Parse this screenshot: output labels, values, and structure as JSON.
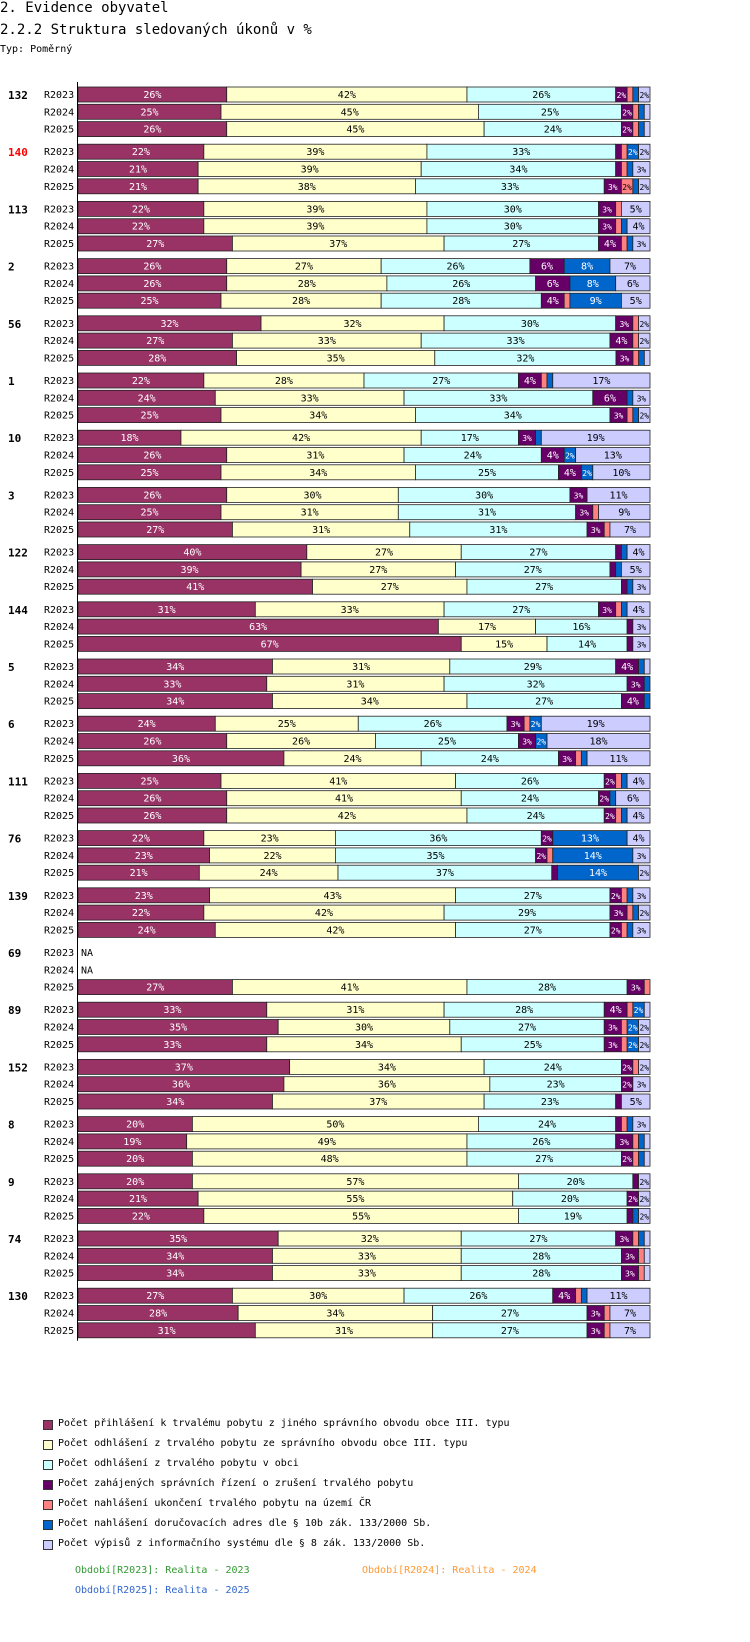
{
  "header": {
    "title": "2. Evidence obyvatel",
    "subtitle": "2.2.2 Struktura sledovaných úkonů v %",
    "type_label": "Typ: Poměrný"
  },
  "colors": [
    "#993366",
    "#FFFFCC",
    "#CCFFFF",
    "#660066",
    "#FF8080",
    "#0066CC",
    "#CCCCFF"
  ],
  "legend": [
    "Počet přihlášení k trvalému pobytu z jiného správního obvodu obce III. typu",
    "Počet odhlášení z trvalého pobytu ze správního obvodu obce III. typu",
    "Počet odhlášení z trvalého pobytu v obci",
    "Počet zahájených správních řízení o zrušení trvalého pobytu",
    "Počet nahlášení ukončení trvalého pobytu na území ČR",
    "Počet nahlášení doručovacích adres dle § 10b zák. 133/2000 Sb.",
    "Počet výpisů z informačního systému dle § 8 zák. 133/2000 Sb."
  ],
  "periods": [
    {
      "label": "Období[R2023]: Realita - 2023",
      "color": "#339933"
    },
    {
      "label": "Období[R2024]: Realita - 2024",
      "color": "#FF9933"
    },
    {
      "label": "Období[R2025]: Realita - 2025",
      "color": "#3366CC"
    }
  ],
  "chart_data": {
    "type": "bar",
    "stacked": true,
    "percent": true,
    "title": "2.2.2 Struktura sledovaných úkonů v %",
    "series_count": 7,
    "na_label": "NA",
    "groups": [
      {
        "id": "132",
        "rows": [
          {
            "period": "R2023",
            "values": [
              26,
              42,
              26,
              2,
              1,
              1,
              2
            ]
          },
          {
            "period": "R2024",
            "values": [
              25,
              45,
              25,
              2,
              1,
              1,
              1
            ]
          },
          {
            "period": "R2025",
            "values": [
              26,
              45,
              24,
              2,
              1,
              1,
              1
            ]
          }
        ]
      },
      {
        "id": "140",
        "highlight": true,
        "rows": [
          {
            "period": "R2023",
            "values": [
              22,
              39,
              33,
              1,
              1,
              2,
              2
            ]
          },
          {
            "period": "R2024",
            "values": [
              21,
              39,
              34,
              1,
              1,
              1,
              3
            ]
          },
          {
            "period": "R2025",
            "values": [
              21,
              38,
              33,
              3,
              2,
              1,
              2
            ]
          }
        ]
      },
      {
        "id": "113",
        "rows": [
          {
            "period": "R2023",
            "values": [
              22,
              39,
              30,
              3,
              1,
              0,
              5
            ]
          },
          {
            "period": "R2024",
            "values": [
              22,
              39,
              30,
              3,
              1,
              1,
              4
            ]
          },
          {
            "period": "R2025",
            "values": [
              27,
              37,
              27,
              4,
              1,
              1,
              3
            ]
          }
        ]
      },
      {
        "id": "2",
        "rows": [
          {
            "period": "R2023",
            "values": [
              26,
              27,
              26,
              6,
              0,
              8,
              7
            ]
          },
          {
            "period": "R2024",
            "values": [
              26,
              28,
              26,
              6,
              0,
              8,
              6
            ]
          },
          {
            "period": "R2025",
            "values": [
              25,
              28,
              28,
              4,
              1,
              9,
              5
            ]
          }
        ]
      },
      {
        "id": "56",
        "rows": [
          {
            "period": "R2023",
            "values": [
              32,
              32,
              30,
              3,
              1,
              0,
              2
            ]
          },
          {
            "period": "R2024",
            "values": [
              27,
              33,
              33,
              4,
              1,
              0,
              2
            ]
          },
          {
            "period": "R2025",
            "values": [
              28,
              35,
              32,
              3,
              1,
              1,
              1
            ]
          }
        ]
      },
      {
        "id": "1",
        "rows": [
          {
            "period": "R2023",
            "values": [
              22,
              28,
              27,
              4,
              1,
              1,
              17
            ]
          },
          {
            "period": "R2024",
            "values": [
              24,
              33,
              33,
              6,
              0,
              1,
              3
            ]
          },
          {
            "period": "R2025",
            "values": [
              25,
              34,
              34,
              3,
              1,
              1,
              2
            ]
          }
        ]
      },
      {
        "id": "10",
        "rows": [
          {
            "period": "R2023",
            "values": [
              18,
              42,
              17,
              3,
              0,
              1,
              19
            ]
          },
          {
            "period": "R2024",
            "values": [
              26,
              31,
              24,
              4,
              0,
              2,
              13
            ]
          },
          {
            "period": "R2025",
            "values": [
              25,
              34,
              25,
              4,
              0,
              2,
              10
            ]
          }
        ]
      },
      {
        "id": "3",
        "rows": [
          {
            "period": "R2023",
            "values": [
              26,
              30,
              30,
              3,
              0,
              0,
              11
            ]
          },
          {
            "period": "R2024",
            "values": [
              25,
              31,
              31,
              3,
              1,
              0,
              9
            ]
          },
          {
            "period": "R2025",
            "values": [
              27,
              31,
              31,
              3,
              1,
              0,
              7
            ]
          }
        ]
      },
      {
        "id": "122",
        "rows": [
          {
            "period": "R2023",
            "values": [
              40,
              27,
              27,
              1,
              0,
              1,
              4
            ]
          },
          {
            "period": "R2024",
            "values": [
              39,
              27,
              27,
              1,
              0,
              1,
              5
            ]
          },
          {
            "period": "R2025",
            "values": [
              41,
              27,
              27,
              1,
              0,
              1,
              3
            ]
          }
        ]
      },
      {
        "id": "144",
        "rows": [
          {
            "period": "R2023",
            "values": [
              31,
              33,
              27,
              3,
              1,
              1,
              4
            ]
          },
          {
            "period": "R2024",
            "values": [
              63,
              17,
              16,
              1,
              0,
              0,
              3
            ]
          },
          {
            "period": "R2025",
            "values": [
              67,
              15,
              14,
              1,
              0,
              0,
              3
            ]
          }
        ]
      },
      {
        "id": "5",
        "rows": [
          {
            "period": "R2023",
            "values": [
              34,
              31,
              29,
              4,
              0,
              1,
              1
            ]
          },
          {
            "period": "R2024",
            "values": [
              33,
              31,
              32,
              3,
              0,
              1,
              0
            ]
          },
          {
            "period": "R2025",
            "values": [
              34,
              34,
              27,
              4,
              0,
              1,
              0
            ]
          }
        ]
      },
      {
        "id": "6",
        "rows": [
          {
            "period": "R2023",
            "values": [
              24,
              25,
              26,
              3,
              1,
              2,
              19
            ]
          },
          {
            "period": "R2024",
            "values": [
              26,
              26,
              25,
              3,
              0,
              2,
              18
            ]
          },
          {
            "period": "R2025",
            "values": [
              36,
              24,
              24,
              3,
              1,
              1,
              11
            ]
          }
        ]
      },
      {
        "id": "111",
        "rows": [
          {
            "period": "R2023",
            "values": [
              25,
              41,
              26,
              2,
              1,
              1,
              4
            ]
          },
          {
            "period": "R2024",
            "values": [
              26,
              41,
              24,
              2,
              0,
              1,
              6
            ]
          },
          {
            "period": "R2025",
            "values": [
              26,
              42,
              24,
              2,
              1,
              1,
              4
            ]
          }
        ]
      },
      {
        "id": "76",
        "rows": [
          {
            "period": "R2023",
            "values": [
              22,
              23,
              36,
              2,
              0,
              13,
              4
            ]
          },
          {
            "period": "R2024",
            "values": [
              23,
              22,
              35,
              2,
              1,
              14,
              3
            ]
          },
          {
            "period": "R2025",
            "values": [
              21,
              24,
              37,
              1,
              0,
              14,
              2
            ]
          }
        ]
      },
      {
        "id": "139",
        "rows": [
          {
            "period": "R2023",
            "values": [
              23,
              43,
              27,
              2,
              1,
              1,
              3
            ]
          },
          {
            "period": "R2024",
            "values": [
              22,
              42,
              29,
              3,
              1,
              1,
              2
            ]
          },
          {
            "period": "R2025",
            "values": [
              24,
              42,
              27,
              2,
              1,
              1,
              3
            ]
          }
        ]
      },
      {
        "id": "69",
        "rows": [
          {
            "period": "R2023",
            "na": true
          },
          {
            "period": "R2024",
            "na": true
          },
          {
            "period": "R2025",
            "values": [
              27,
              41,
              28,
              3,
              1,
              0,
              0
            ]
          }
        ]
      },
      {
        "id": "89",
        "rows": [
          {
            "period": "R2023",
            "values": [
              33,
              31,
              28,
              4,
              1,
              2,
              1
            ]
          },
          {
            "period": "R2024",
            "values": [
              35,
              30,
              27,
              3,
              1,
              2,
              2
            ]
          },
          {
            "period": "R2025",
            "values": [
              33,
              34,
              25,
              3,
              1,
              2,
              2
            ]
          }
        ]
      },
      {
        "id": "152",
        "rows": [
          {
            "period": "R2023",
            "values": [
              37,
              34,
              24,
              2,
              1,
              0,
              2
            ]
          },
          {
            "period": "R2024",
            "values": [
              36,
              36,
              23,
              2,
              0,
              0,
              3
            ]
          },
          {
            "period": "R2025",
            "values": [
              34,
              37,
              23,
              1,
              0,
              0,
              5
            ]
          }
        ]
      },
      {
        "id": "8",
        "rows": [
          {
            "period": "R2023",
            "values": [
              20,
              50,
              24,
              1,
              1,
              1,
              3
            ]
          },
          {
            "period": "R2024",
            "values": [
              19,
              49,
              26,
              3,
              1,
              1,
              1
            ]
          },
          {
            "period": "R2025",
            "values": [
              20,
              48,
              27,
              2,
              1,
              1,
              1
            ]
          }
        ]
      },
      {
        "id": "9",
        "rows": [
          {
            "period": "R2023",
            "values": [
              20,
              57,
              20,
              1,
              0,
              0,
              2
            ]
          },
          {
            "period": "R2024",
            "values": [
              21,
              55,
              20,
              2,
              0,
              0,
              2
            ]
          },
          {
            "period": "R2025",
            "values": [
              22,
              55,
              19,
              1,
              0,
              1,
              2
            ]
          }
        ]
      },
      {
        "id": "74",
        "rows": [
          {
            "period": "R2023",
            "values": [
              35,
              32,
              27,
              3,
              1,
              1,
              1
            ]
          },
          {
            "period": "R2024",
            "values": [
              34,
              33,
              28,
              3,
              1,
              0,
              1
            ]
          },
          {
            "period": "R2025",
            "values": [
              34,
              33,
              28,
              3,
              1,
              0,
              1
            ]
          }
        ]
      },
      {
        "id": "130",
        "rows": [
          {
            "period": "R2023",
            "values": [
              27,
              30,
              26,
              4,
              1,
              1,
              11
            ]
          },
          {
            "period": "R2024",
            "values": [
              28,
              34,
              27,
              3,
              1,
              0,
              7
            ]
          },
          {
            "period": "R2025",
            "values": [
              31,
              31,
              27,
              3,
              1,
              0,
              7
            ]
          }
        ]
      }
    ]
  }
}
